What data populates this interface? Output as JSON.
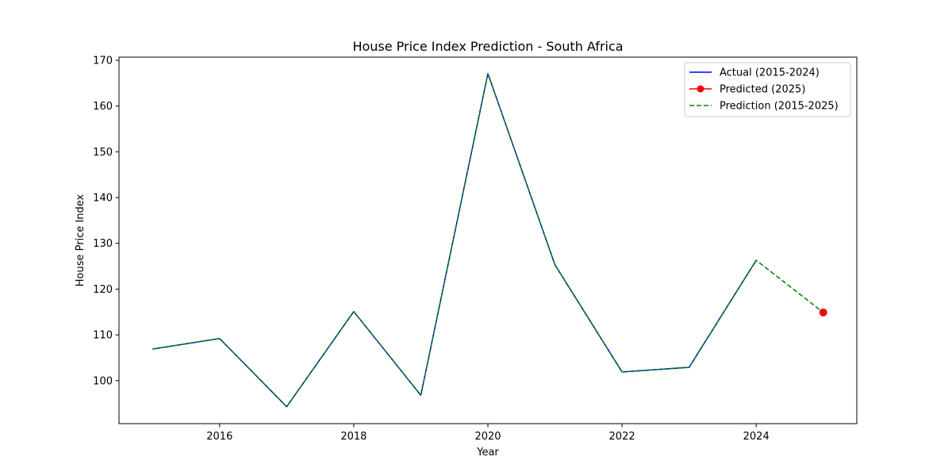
{
  "chart_data": {
    "type": "line",
    "title": "House Price Index Prediction - South Africa",
    "xlabel": "Year",
    "ylabel": "House Price Index",
    "xlim": [
      2014.5,
      2025.5
    ],
    "ylim": [
      90.6,
      170.7
    ],
    "xticks": [
      2016,
      2018,
      2020,
      2022,
      2024
    ],
    "yticks": [
      100,
      110,
      120,
      130,
      140,
      150,
      160,
      170
    ],
    "grid": false,
    "legend_position": "upper-right",
    "series": [
      {
        "name": "Actual (2015-2024)",
        "color": "#0000ff",
        "style": "solid",
        "marker": "none",
        "x": [
          2015,
          2016,
          2017,
          2018,
          2019,
          2020,
          2021,
          2022,
          2023,
          2024
        ],
        "values": [
          106.9,
          109.2,
          94.3,
          115.1,
          96.8,
          167.1,
          125.3,
          101.9,
          102.9,
          126.3
        ]
      },
      {
        "name": "Predicted (2025)",
        "color": "#ff0000",
        "style": "solid",
        "marker": "circle",
        "x": [
          2025
        ],
        "values": [
          114.9
        ]
      },
      {
        "name": "Prediction (2015-2025)",
        "color": "#008000",
        "style": "dashed",
        "marker": "none",
        "x": [
          2015,
          2016,
          2017,
          2018,
          2019,
          2020,
          2021,
          2022,
          2023,
          2024,
          2025
        ],
        "values": [
          106.9,
          109.2,
          94.3,
          115.1,
          96.8,
          167.1,
          125.3,
          101.9,
          102.9,
          126.3,
          114.9
        ]
      }
    ]
  }
}
